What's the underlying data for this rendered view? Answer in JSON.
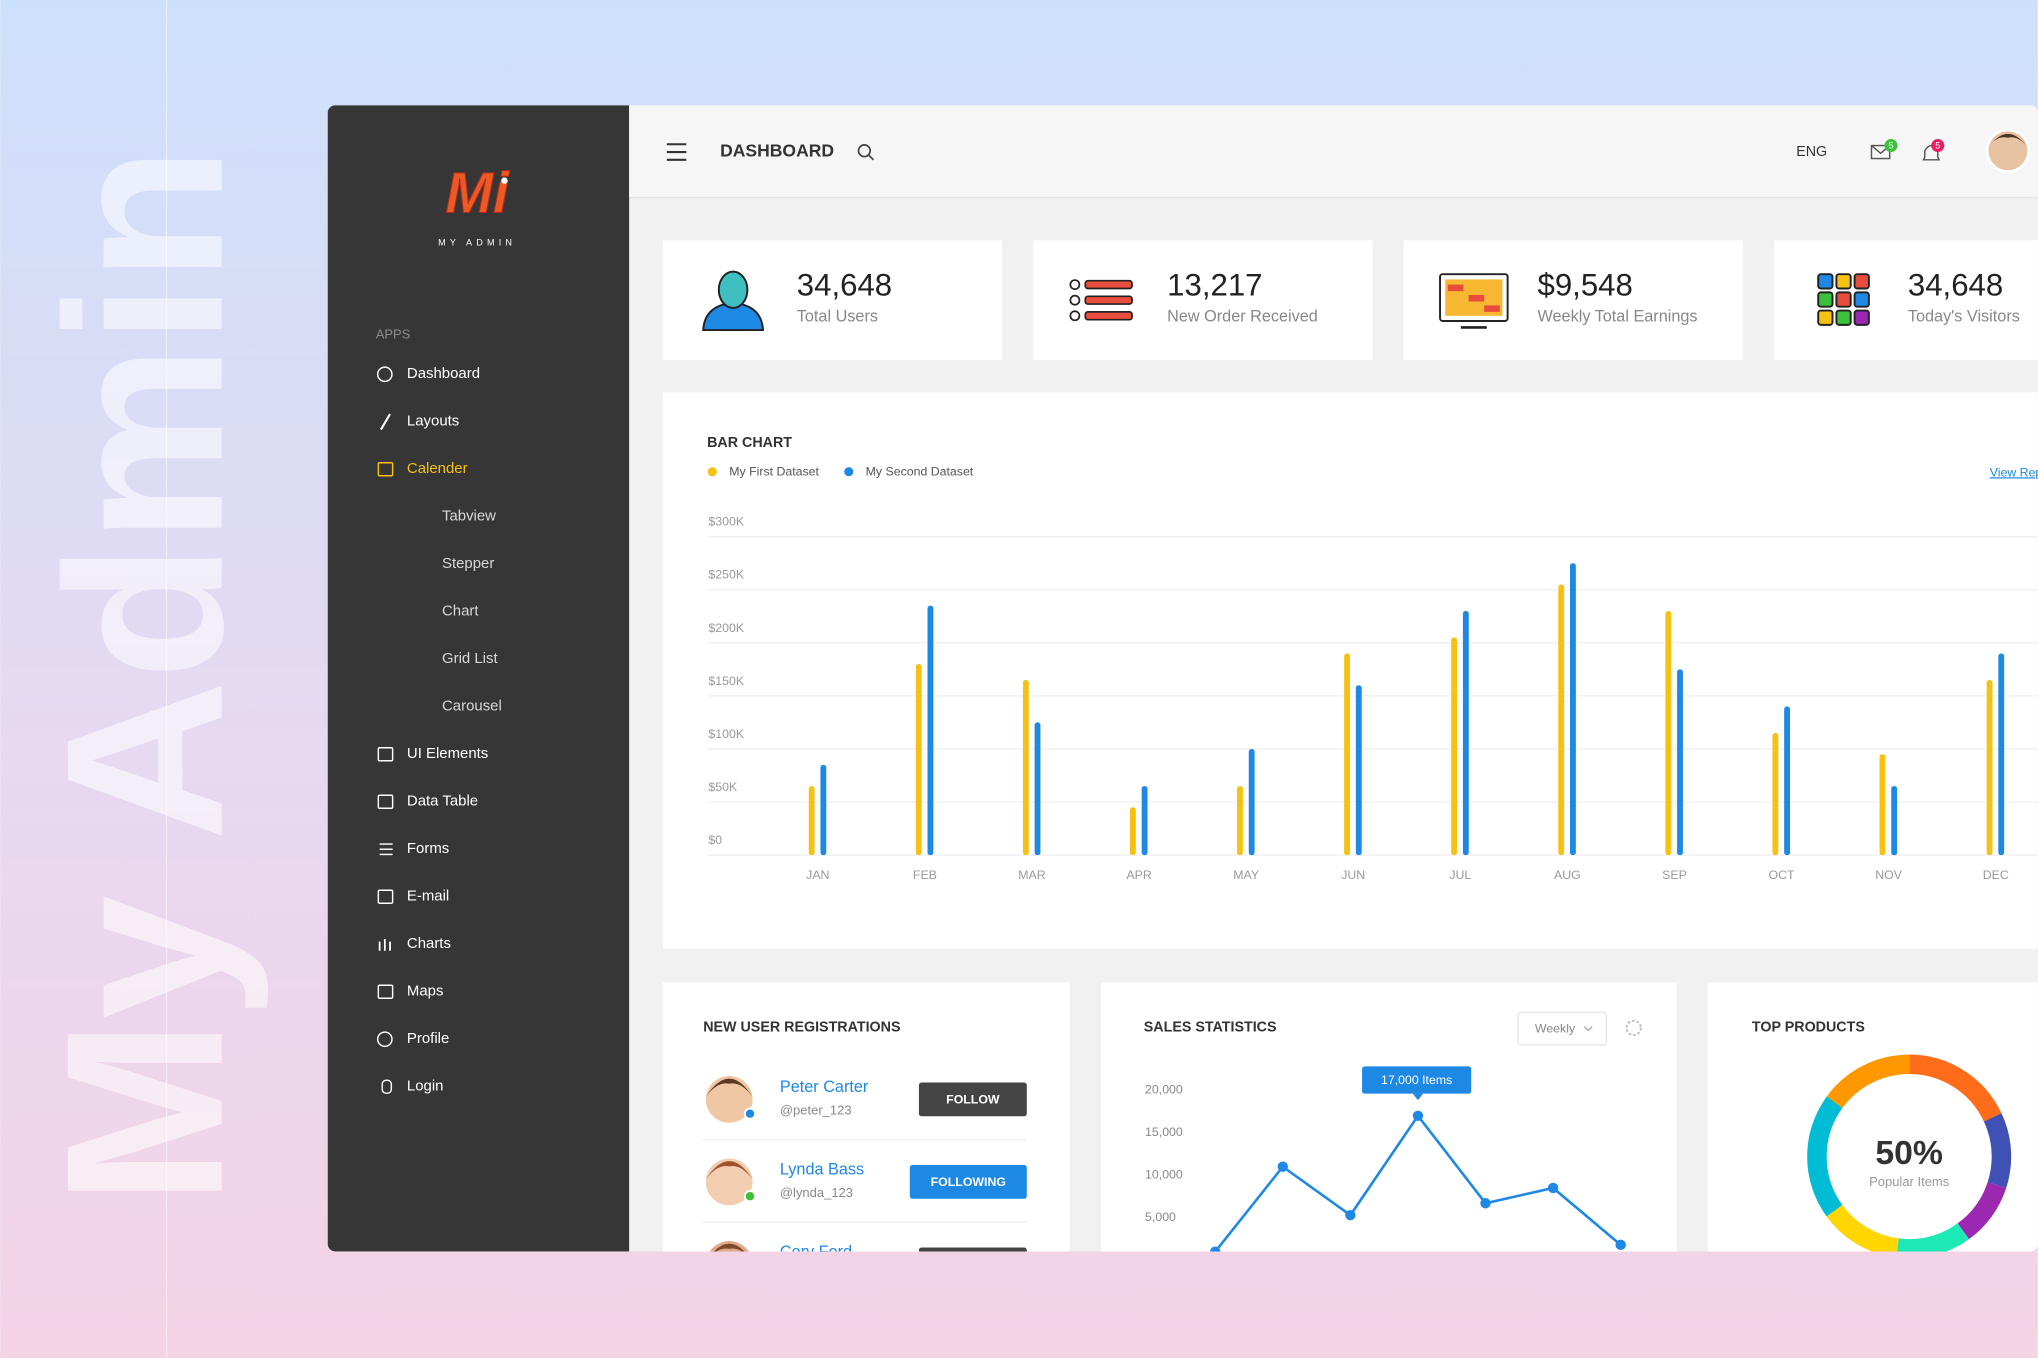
{
  "watermark": "My Admin",
  "brand": {
    "logo": "Mi",
    "name": "MY ADMIN"
  },
  "sidebar": {
    "section": "APPS",
    "items": [
      "Dashboard",
      "Layouts",
      "Calender",
      "Tabview",
      "Stepper",
      "Chart",
      "Grid List",
      "Carousel",
      "UI Elements",
      "Data Table",
      "Forms",
      "E-mail",
      "Charts",
      "Maps",
      "Profile",
      "Login"
    ]
  },
  "header": {
    "title": "DASHBOARD",
    "language": "ENG",
    "mail_count": "5",
    "notification_count": "5"
  },
  "stats": [
    {
      "value": "34,648",
      "label": "Total Users"
    },
    {
      "value": "13,217",
      "label": "New Order Received"
    },
    {
      "value": "$9,548",
      "label": "Weekly Total Earnings"
    },
    {
      "value": "34,648",
      "label": "Today's Visitors"
    }
  ],
  "registrations": {
    "title": "NEW USER REGISTRATIONS",
    "users": [
      {
        "name": "Peter Carter",
        "handle": "@peter_123",
        "action": "FOLLOW"
      },
      {
        "name": "Lynda Bass",
        "handle": "@lynda_123",
        "action": "FOLLOWING"
      },
      {
        "name": "Cory Ford"
      }
    ]
  },
  "sales": {
    "period": "Weekly"
  },
  "top_products": {
    "title": "TOP PRODUCTS",
    "value": "50%",
    "label": "Popular Items"
  },
  "chart_data": [
    {
      "type": "bar",
      "title": "BAR CHART",
      "link": "View Report",
      "categories": [
        "JAN",
        "FEB",
        "MAR",
        "APR",
        "MAY",
        "JUN",
        "JUL",
        "AUG",
        "SEP",
        "OCT",
        "NOV",
        "DEC"
      ],
      "series": [
        {
          "name": "My First Dataset",
          "color": "#f5c211",
          "values": [
            65000,
            180000,
            165000,
            45000,
            65000,
            190000,
            205000,
            255000,
            230000,
            115000,
            95000,
            165000
          ]
        },
        {
          "name": "My Second Dataset",
          "color": "#1e88e5",
          "values": [
            85000,
            235000,
            125000,
            65000,
            100000,
            160000,
            230000,
            275000,
            175000,
            140000,
            65000,
            190000
          ]
        }
      ],
      "ylim": [
        0,
        300000
      ],
      "yticks": [
        {
          "value": 0,
          "label": "$0"
        },
        {
          "value": 50000,
          "label": "$50K"
        },
        {
          "value": 100000,
          "label": "$100K"
        },
        {
          "value": 150000,
          "label": "$150K"
        },
        {
          "value": 200000,
          "label": "$200K"
        },
        {
          "value": 250000,
          "label": "$250K"
        },
        {
          "value": 300000,
          "label": "$300K"
        }
      ],
      "grid": true
    },
    {
      "type": "line",
      "title": "SALES STATISTICS",
      "categories": [
        null,
        null,
        null,
        null,
        null,
        null,
        null
      ],
      "values": [
        1000,
        11000,
        5300,
        17000,
        6700,
        8500,
        1800
      ],
      "value_labels": [
        null,
        null,
        null,
        "17,000 Items",
        null,
        null,
        null
      ],
      "highlight": 3,
      "color": "#1e88e5",
      "ylim": [
        0,
        20000
      ],
      "yticks": [
        {
          "value": 5000,
          "label": "5,000"
        },
        {
          "value": 10000,
          "label": "10,000"
        },
        {
          "value": 15000,
          "label": "15,000"
        },
        {
          "value": 20000,
          "label": "20,000"
        }
      ],
      "grid": false
    }
  ]
}
